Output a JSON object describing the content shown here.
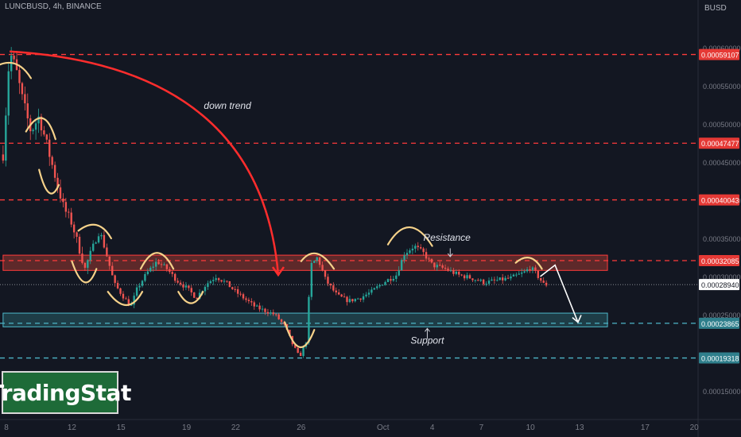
{
  "header": {
    "symbol_line": "LUNCBUSD, 4h, BINANCE",
    "currency": "BUSD"
  },
  "logo": {
    "text": "TradingStat"
  },
  "colors": {
    "background": "#131722",
    "bull": "#26a69a",
    "bear": "#ef5350",
    "resistance": "#ff3b3b",
    "support": "#4db6c8",
    "annotation": "#f6d28a",
    "trend_arrow": "#ff2d2d",
    "projection": "#ffffff",
    "axis_text": "#787b86",
    "price_label": "#ffffff"
  },
  "chart_data": {
    "type": "candlestick",
    "title": "LUNCBUSD, 4h, BINANCE",
    "ylabel": "BUSD",
    "y_range": [
      0.00014,
      0.00062
    ],
    "x_range_days": [
      7.8,
      51.1
    ],
    "x_ticks": [
      {
        "label": "8",
        "day": 8
      },
      {
        "label": "12",
        "day": 12
      },
      {
        "label": "15",
        "day": 15
      },
      {
        "label": "19",
        "day": 19
      },
      {
        "label": "22",
        "day": 22
      },
      {
        "label": "26",
        "day": 26
      },
      {
        "label": "Oct",
        "day": 31
      },
      {
        "label": "4",
        "day": 34
      },
      {
        "label": "7",
        "day": 37
      },
      {
        "label": "10",
        "day": 40
      },
      {
        "label": "13",
        "day": 43
      },
      {
        "label": "17",
        "day": 47
      },
      {
        "label": "20",
        "day": 50
      }
    ],
    "y_ticks": [
      "0.00060000",
      "0.00055000",
      "0.00050000",
      "0.00045000",
      "0.00040000",
      "0.00035000",
      "0.00030000",
      "0.00025000",
      "0.00015000"
    ],
    "y_tick_values": [
      0.0006,
      0.00055,
      0.0005,
      0.00045,
      0.0004,
      0.00035,
      0.0003,
      0.00025,
      0.00015
    ],
    "price_path": [
      [
        7.8,
        0.00046
      ],
      [
        8.2,
        0.000595
      ],
      [
        8.6,
        0.00057
      ],
      [
        9.0,
        0.00053
      ],
      [
        9.5,
        0.00049
      ],
      [
        10.0,
        0.00051
      ],
      [
        10.5,
        0.00047
      ],
      [
        11.0,
        0.00043
      ],
      [
        11.5,
        0.00039
      ],
      [
        12.0,
        0.00037
      ],
      [
        12.4,
        0.00034
      ],
      [
        12.8,
        0.00031
      ],
      [
        13.2,
        0.000335
      ],
      [
        13.7,
        0.00036
      ],
      [
        14.1,
        0.00033
      ],
      [
        14.6,
        0.00029
      ],
      [
        15.1,
        0.000275
      ],
      [
        15.6,
        0.00026
      ],
      [
        16.0,
        0.000285
      ],
      [
        16.6,
        0.000305
      ],
      [
        17.2,
        0.00032
      ],
      [
        17.8,
        0.00031
      ],
      [
        18.4,
        0.000295
      ],
      [
        19.0,
        0.000285
      ],
      [
        19.6,
        0.000272
      ],
      [
        20.2,
        0.00029
      ],
      [
        20.8,
        0.0003
      ],
      [
        21.4,
        0.000292
      ],
      [
        22.0,
        0.00028
      ],
      [
        22.6,
        0.00027
      ],
      [
        23.2,
        0.00026
      ],
      [
        23.8,
        0.000255
      ],
      [
        24.4,
        0.00025
      ],
      [
        25.0,
        0.000235
      ],
      [
        25.5,
        0.00021
      ],
      [
        25.9,
        0.000194
      ],
      [
        26.3,
        0.000215
      ],
      [
        26.6,
        0.000315
      ],
      [
        27.0,
        0.000325
      ],
      [
        27.5,
        0.000295
      ],
      [
        28.2,
        0.000275
      ],
      [
        28.9,
        0.000268
      ],
      [
        29.6,
        0.000272
      ],
      [
        30.3,
        0.00028
      ],
      [
        31.0,
        0.000292
      ],
      [
        31.8,
        0.000302
      ],
      [
        32.3,
        0.00033
      ],
      [
        32.9,
        0.00034
      ],
      [
        33.5,
        0.00033
      ],
      [
        34.0,
        0.000315
      ],
      [
        34.8,
        0.00031
      ],
      [
        35.6,
        0.000302
      ],
      [
        36.4,
        0.000298
      ],
      [
        37.2,
        0.000292
      ],
      [
        38.0,
        0.000295
      ],
      [
        38.8,
        0.000298
      ],
      [
        39.6,
        0.000305
      ],
      [
        40.0,
        0.000312
      ],
      [
        40.4,
        0.000302
      ],
      [
        40.8,
        0.00029
      ],
      [
        41.1,
        0.000289
      ]
    ],
    "horizontal_levels": [
      {
        "price_label": "0.00059107",
        "value": 0.00059107,
        "style": "resistance"
      },
      {
        "price_label": "0.00047477",
        "value": 0.00047477,
        "style": "resistance"
      },
      {
        "price_label": "0.00040043",
        "value": 0.00040043,
        "style": "resistance"
      },
      {
        "price_label": "0.00032085",
        "value": 0.00032085,
        "style": "resistance"
      },
      {
        "price_label": "0.00023865",
        "value": 0.00023865,
        "style": "support"
      },
      {
        "price_label": "0.00019318",
        "value": 0.00019318,
        "style": "support"
      }
    ],
    "current_price": {
      "price_label": "0.00028940",
      "value": 0.0002894
    },
    "zones": [
      {
        "name": "resistance-zone",
        "y_range": [
          0.000308,
          0.000328
        ],
        "day_range": [
          7.8,
          44.7
        ],
        "style": "resistance"
      },
      {
        "name": "support-zone",
        "y_range": [
          0.000234,
          0.000252
        ],
        "day_range": [
          7.8,
          44.7
        ],
        "style": "support"
      }
    ],
    "annotations": [
      {
        "text": "down trend",
        "day": 21.5,
        "value": 0.00052
      },
      {
        "text": "Resistance",
        "day": 34.9,
        "value": 0.000347
      },
      {
        "text": "Support",
        "day": 33.7,
        "value": 0.000212
      }
    ]
  }
}
